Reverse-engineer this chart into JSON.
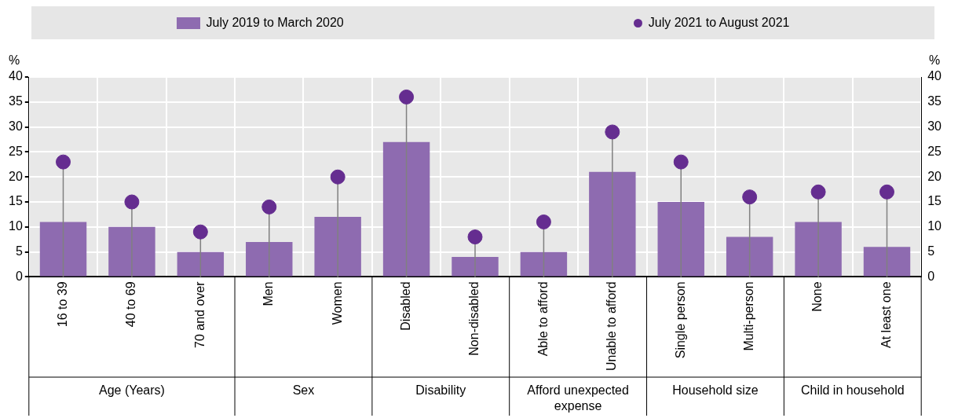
{
  "chart_data": {
    "type": "bar",
    "categories": [
      "16 to 39",
      "40 to 69",
      "70 and over",
      "Men",
      "Women",
      "Disabled",
      "Non-disabled",
      "Able to afford",
      "Unable to afford",
      "Single person",
      "Multi-person",
      "None",
      "At least one"
    ],
    "series": [
      {
        "name": "July 2019 to March 2020",
        "color": "#8e6bb0",
        "values": [
          11,
          10,
          5,
          7,
          12,
          27,
          4,
          5,
          21,
          15,
          8,
          11,
          6
        ]
      },
      {
        "name": "July 2021 to August 2021",
        "type": "lollipop",
        "color": "#652d90",
        "values": [
          23,
          15,
          9,
          14,
          20,
          36,
          8,
          11,
          29,
          23,
          16,
          17,
          17
        ]
      }
    ],
    "ylabel": "%",
    "y2label": "%",
    "ylim": [
      0,
      40
    ],
    "yticks": [
      0,
      5,
      10,
      15,
      20,
      25,
      30,
      35,
      40
    ],
    "y2lim": [
      0,
      40
    ],
    "y2ticks": [
      0,
      5,
      10,
      15,
      20,
      25,
      30,
      35,
      40
    ],
    "annotations": [
      "Age (Years)",
      "Sex",
      "Disability",
      "Afford unexpected expense",
      "Household size",
      "Child in household"
    ],
    "grid": true,
    "legend": "top",
    "marker": "circle"
  }
}
